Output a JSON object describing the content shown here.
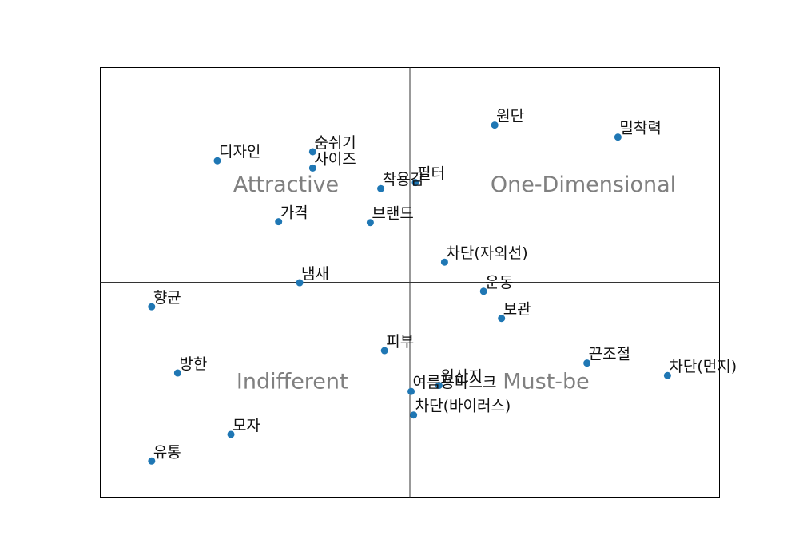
{
  "chart_data": {
    "type": "scatter",
    "title": "",
    "xlabel": "",
    "ylabel": "",
    "xlim": [
      0,
      1
    ],
    "ylim": [
      0,
      1
    ],
    "grid": false,
    "ticks": false,
    "point_color": "#1f77b4",
    "divider": {
      "x": 0.5,
      "y": 0.5
    },
    "quadrant_labels": [
      {
        "text": "Attractive",
        "x": 0.3,
        "y": 0.725
      },
      {
        "text": "One-Dimensional",
        "x": 0.78,
        "y": 0.725
      },
      {
        "text": "Indifferent",
        "x": 0.31,
        "y": 0.267
      },
      {
        "text": "Must-be",
        "x": 0.72,
        "y": 0.267
      }
    ],
    "points": [
      {
        "label": "원단",
        "x": 0.637,
        "y": 0.866
      },
      {
        "label": "밀착력",
        "x": 0.836,
        "y": 0.838
      },
      {
        "label": "숨쉬기",
        "x": 0.343,
        "y": 0.804
      },
      {
        "label": "디자인",
        "x": 0.189,
        "y": 0.783
      },
      {
        "label": "사이즈",
        "x": 0.343,
        "y": 0.766
      },
      {
        "label": "필터",
        "x": 0.509,
        "y": 0.732
      },
      {
        "label": "착용감",
        "x": 0.453,
        "y": 0.718
      },
      {
        "label": "가격",
        "x": 0.288,
        "y": 0.641
      },
      {
        "label": "브랜드",
        "x": 0.436,
        "y": 0.639
      },
      {
        "label": "차단(자외선)",
        "x": 0.556,
        "y": 0.547
      },
      {
        "label": "냄새",
        "x": 0.322,
        "y": 0.499
      },
      {
        "label": "운동",
        "x": 0.619,
        "y": 0.479
      },
      {
        "label": "향균",
        "x": 0.083,
        "y": 0.443
      },
      {
        "label": "보관",
        "x": 0.648,
        "y": 0.416
      },
      {
        "label": "피부",
        "x": 0.459,
        "y": 0.341
      },
      {
        "label": "끈조절",
        "x": 0.786,
        "y": 0.312
      },
      {
        "label": "방한",
        "x": 0.125,
        "y": 0.289
      },
      {
        "label": "차단(먼지)",
        "x": 0.916,
        "y": 0.283
      },
      {
        "label": "원산지",
        "x": 0.547,
        "y": 0.26
      },
      {
        "label": "여름용마스크",
        "x": 0.502,
        "y": 0.246
      },
      {
        "label": "차단(바이러스)",
        "x": 0.506,
        "y": 0.191
      },
      {
        "label": "모자",
        "x": 0.211,
        "y": 0.146
      },
      {
        "label": "유통",
        "x": 0.083,
        "y": 0.084
      }
    ]
  }
}
